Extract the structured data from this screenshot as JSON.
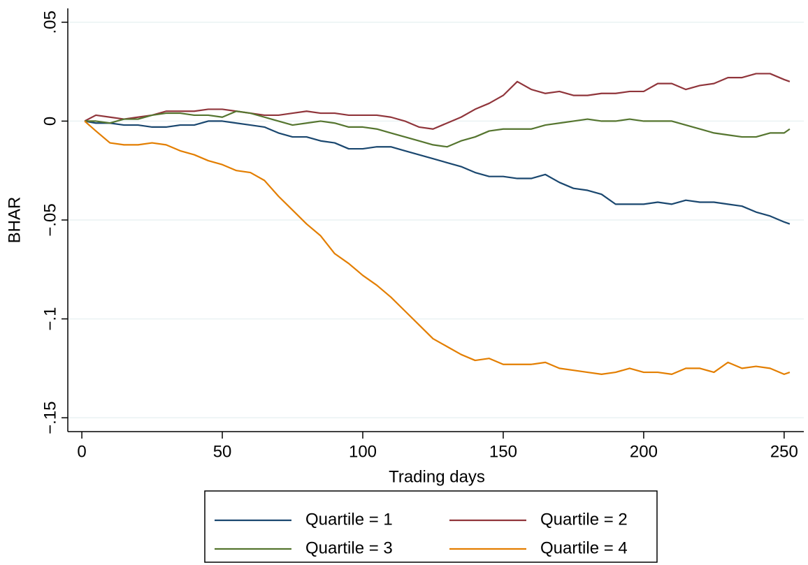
{
  "chart_data": {
    "type": "line",
    "x_label": "Trading days",
    "y_label": "BHAR",
    "x": [
      1,
      5,
      10,
      15,
      20,
      25,
      30,
      35,
      40,
      45,
      50,
      55,
      60,
      65,
      70,
      75,
      80,
      85,
      90,
      95,
      100,
      105,
      110,
      115,
      120,
      125,
      130,
      135,
      140,
      145,
      150,
      155,
      160,
      165,
      170,
      175,
      180,
      185,
      190,
      195,
      200,
      205,
      210,
      215,
      220,
      225,
      230,
      235,
      240,
      245,
      250,
      252
    ],
    "series": [
      {
        "name": "Quartile = 1",
        "color": "#1a476f",
        "values": [
          0,
          -0.001,
          -0.001,
          -0.002,
          -0.002,
          -0.003,
          -0.003,
          -0.002,
          -0.002,
          0,
          0,
          -0.001,
          -0.002,
          -0.003,
          -0.006,
          -0.008,
          -0.008,
          -0.01,
          -0.011,
          -0.014,
          -0.014,
          -0.013,
          -0.013,
          -0.015,
          -0.017,
          -0.019,
          -0.021,
          -0.023,
          -0.026,
          -0.028,
          -0.028,
          -0.029,
          -0.029,
          -0.027,
          -0.031,
          -0.034,
          -0.035,
          -0.037,
          -0.042,
          -0.042,
          -0.042,
          -0.041,
          -0.042,
          -0.04,
          -0.041,
          -0.041,
          -0.042,
          -0.043,
          -0.046,
          -0.048,
          -0.051,
          -0.052
        ]
      },
      {
        "name": "Quartile = 2",
        "color": "#90353b",
        "values": [
          0,
          0.003,
          0.002,
          0.001,
          0.002,
          0.003,
          0.005,
          0.005,
          0.005,
          0.006,
          0.006,
          0.005,
          0.004,
          0.003,
          0.003,
          0.004,
          0.005,
          0.004,
          0.004,
          0.003,
          0.003,
          0.003,
          0.002,
          0,
          -0.003,
          -0.004,
          -0.001,
          0.002,
          0.006,
          0.009,
          0.013,
          0.02,
          0.016,
          0.014,
          0.015,
          0.013,
          0.013,
          0.014,
          0.014,
          0.015,
          0.015,
          0.019,
          0.019,
          0.016,
          0.018,
          0.019,
          0.022,
          0.022,
          0.024,
          0.024,
          0.021,
          0.02
        ]
      },
      {
        "name": "Quartile = 3",
        "color": "#55752f",
        "values": [
          0,
          0,
          -0.001,
          0.001,
          0.001,
          0.003,
          0.004,
          0.004,
          0.003,
          0.003,
          0.002,
          0.005,
          0.004,
          0.002,
          0,
          -0.002,
          -0.001,
          0,
          -0.001,
          -0.003,
          -0.003,
          -0.004,
          -0.006,
          -0.008,
          -0.01,
          -0.012,
          -0.013,
          -0.01,
          -0.008,
          -0.005,
          -0.004,
          -0.004,
          -0.004,
          -0.002,
          -0.001,
          0,
          0.001,
          0,
          0,
          0.001,
          0,
          0,
          0,
          -0.002,
          -0.004,
          -0.006,
          -0.007,
          -0.008,
          -0.008,
          -0.006,
          -0.006,
          -0.004
        ]
      },
      {
        "name": "Quartile = 4",
        "color": "#e37e00",
        "values": [
          0,
          -0.005,
          -0.011,
          -0.012,
          -0.012,
          -0.011,
          -0.012,
          -0.015,
          -0.017,
          -0.02,
          -0.022,
          -0.025,
          -0.026,
          -0.03,
          -0.038,
          -0.045,
          -0.052,
          -0.058,
          -0.067,
          -0.072,
          -0.078,
          -0.083,
          -0.089,
          -0.096,
          -0.103,
          -0.11,
          -0.114,
          -0.118,
          -0.121,
          -0.12,
          -0.123,
          -0.123,
          -0.123,
          -0.122,
          -0.125,
          -0.126,
          -0.127,
          -0.128,
          -0.127,
          -0.125,
          -0.127,
          -0.127,
          -0.128,
          -0.125,
          -0.125,
          -0.127,
          -0.122,
          -0.125,
          -0.124,
          -0.125,
          -0.128,
          -0.127
        ]
      }
    ],
    "xlim": [
      -5,
      257
    ],
    "ylim": [
      -0.157,
      0.057
    ],
    "xticks": [
      0,
      50,
      100,
      150,
      200,
      250
    ],
    "yticks": [
      {
        "value": 0.05,
        "label": ".05"
      },
      0,
      {
        "value": -0.05,
        "label": "−.05"
      },
      {
        "value": -0.1,
        "label": "−.1"
      },
      {
        "value": -0.15,
        "label": "−.15"
      }
    ],
    "grid": true,
    "legend_position": "bottom"
  }
}
